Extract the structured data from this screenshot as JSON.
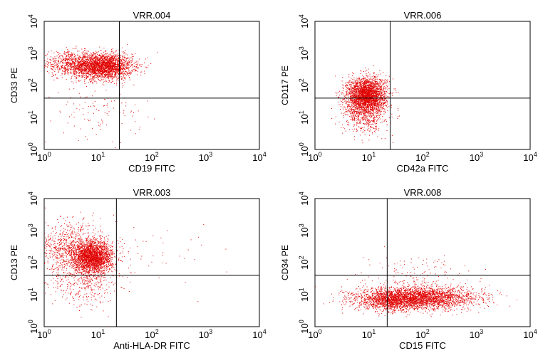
{
  "chart_data": [
    {
      "type": "scatter",
      "title": "VRR.004",
      "xlabel": "CD19 FITC",
      "ylabel": "CD33 PE",
      "xscale": "log",
      "yscale": "log",
      "xlim": [
        1,
        10000
      ],
      "ylim": [
        1,
        10000
      ],
      "x_ticks": [
        "10^0",
        "10^1",
        "10^2",
        "10^3",
        "10^4"
      ],
      "y_ticks": [
        "10^0",
        "10^1",
        "10^2",
        "10^3",
        "10^4"
      ],
      "quadrant_gate": {
        "x": 25,
        "y": 40
      },
      "color": "#e00000",
      "clusters": [
        {
          "center": [
            12,
            400
          ],
          "spread_log10": [
            0.28,
            0.2
          ],
          "count": 2600
        },
        {
          "center": [
            3,
            500
          ],
          "spread_log10": [
            0.3,
            0.18
          ],
          "count": 600
        },
        {
          "center": [
            10,
            15
          ],
          "spread_log10": [
            0.4,
            0.4
          ],
          "count": 110
        }
      ],
      "grid": false
    },
    {
      "type": "scatter",
      "title": "VRR.006",
      "xlabel": "CD42a FITC",
      "ylabel": "CD117 PE",
      "xscale": "log",
      "yscale": "log",
      "xlim": [
        1,
        10000
      ],
      "ylim": [
        1,
        10000
      ],
      "x_ticks": [
        "10^0",
        "10^1",
        "10^2",
        "10^3",
        "10^4"
      ],
      "y_ticks": [
        "10^0",
        "10^1",
        "10^2",
        "10^3",
        "10^4"
      ],
      "quadrant_gate": {
        "x": 25,
        "y": 40
      },
      "color": "#e00000",
      "clusters": [
        {
          "center": [
            9,
            50
          ],
          "spread_log10": [
            0.18,
            0.28
          ],
          "count": 2800
        },
        {
          "center": [
            8,
            12
          ],
          "spread_log10": [
            0.2,
            0.3
          ],
          "count": 500
        }
      ],
      "grid": false
    },
    {
      "type": "scatter",
      "title": "VRR.003",
      "xlabel": "Anti-HLA-DR FITC",
      "ylabel": "CD13 PE",
      "xscale": "log",
      "yscale": "log",
      "xlim": [
        1,
        10000
      ],
      "ylim": [
        1,
        10000
      ],
      "x_ticks": [
        "10^0",
        "10^1",
        "10^2",
        "10^3",
        "10^4"
      ],
      "y_ticks": [
        "10^0",
        "10^1",
        "10^2",
        "10^3",
        "10^4"
      ],
      "quadrant_gate": {
        "x": 22,
        "y": 40
      },
      "color": "#e00000",
      "clusters": [
        {
          "center": [
            8,
            150
          ],
          "spread_log10": [
            0.18,
            0.25
          ],
          "count": 2400
        },
        {
          "center": [
            3,
            250
          ],
          "spread_log10": [
            0.3,
            0.45
          ],
          "count": 900
        },
        {
          "center": [
            6,
            20
          ],
          "spread_log10": [
            0.3,
            0.35
          ],
          "count": 300
        },
        {
          "center": [
            80,
            200
          ],
          "spread_log10": [
            0.6,
            0.5
          ],
          "count": 60
        }
      ],
      "grid": false
    },
    {
      "type": "scatter",
      "title": "VRR.008",
      "xlabel": "CD15 FITC",
      "ylabel": "CD34 PE",
      "xscale": "log",
      "yscale": "log",
      "xlim": [
        1,
        10000
      ],
      "ylim": [
        1,
        10000
      ],
      "x_ticks": [
        "10^0",
        "10^1",
        "10^2",
        "10^3",
        "10^4"
      ],
      "y_ticks": [
        "10^0",
        "10^1",
        "10^2",
        "10^3",
        "10^4"
      ],
      "quadrant_gate": {
        "x": 22,
        "y": 40
      },
      "color": "#e00000",
      "clusters": [
        {
          "center": [
            80,
            8
          ],
          "spread_log10": [
            0.55,
            0.17
          ],
          "count": 3000
        },
        {
          "center": [
            25,
            6
          ],
          "spread_log10": [
            0.3,
            0.15
          ],
          "count": 700
        },
        {
          "center": [
            60,
            40
          ],
          "spread_log10": [
            0.5,
            0.3
          ],
          "count": 150
        }
      ],
      "grid": false
    }
  ]
}
